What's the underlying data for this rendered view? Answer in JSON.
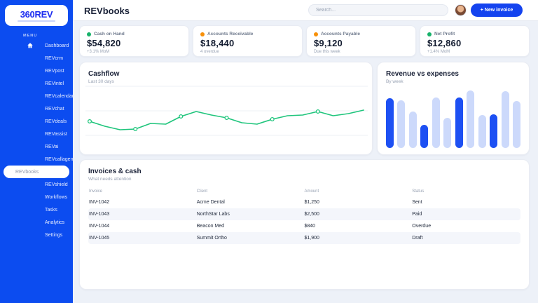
{
  "app": {
    "logo_text": "360REV"
  },
  "sidebar": {
    "menu_label": "MENU",
    "items": [
      {
        "label": "Dashboard"
      },
      {
        "label": "REVcrm"
      },
      {
        "label": "REVpost"
      },
      {
        "label": "REVintel"
      },
      {
        "label": "REVcalendar"
      },
      {
        "label": "REVchat"
      },
      {
        "label": "REVdeals"
      },
      {
        "label": "REVassist"
      },
      {
        "label": "REVai"
      },
      {
        "label": "REVcallagent"
      },
      {
        "label": "REVbooks"
      },
      {
        "label": "REVshield"
      },
      {
        "label": "Workflows"
      },
      {
        "label": "Tasks"
      },
      {
        "label": "Analytics"
      },
      {
        "label": "Settings"
      }
    ],
    "active_item": "REVbooks"
  },
  "header": {
    "title": "REVbooks",
    "search_placeholder": "Search...",
    "new_invoice_label": "+ New invoice"
  },
  "kpis": [
    {
      "label": "Cash on Hand",
      "value": "$54,820",
      "sub": "+3.1% MoM",
      "dot_color": "#17b26a"
    },
    {
      "label": "Accounts Receivable",
      "value": "$18,440",
      "sub": "4 overdue",
      "dot_color": "#f79009"
    },
    {
      "label": "Accounts Payable",
      "value": "$9,120",
      "sub": "Due this week",
      "dot_color": "#f79009"
    },
    {
      "label": "Net Profit",
      "value": "$12,860",
      "sub": "+1.4% MoM",
      "dot_color": "#17b26a"
    }
  ],
  "chart_data": [
    {
      "type": "line",
      "title": "Cashflow",
      "subtitle": "Last 30 days",
      "xlabel": "",
      "ylabel": "",
      "grid": "3 horizontal gridlines, no axis labels",
      "legend": "none",
      "color": "#1fc57c",
      "series": [
        {
          "name": "cash",
          "values": [
            33,
            26,
            21,
            22,
            30,
            29,
            40,
            47,
            42,
            38,
            31,
            29,
            36,
            41,
            42,
            47,
            41,
            44,
            49
          ]
        }
      ],
      "marker_indices": [
        0,
        3,
        6,
        9,
        12,
        15
      ]
    },
    {
      "type": "bar",
      "title": "Revenue vs expenses",
      "subtitle": "By week",
      "xlabel": "",
      "ylabel": "",
      "grid": "off",
      "legend": "none",
      "values": [
        71,
        68,
        52,
        33,
        72,
        43,
        72,
        82,
        47,
        48,
        81,
        67
      ],
      "bar_colors": [
        "revenue",
        "expenses",
        "expenses",
        "revenue",
        "expenses",
        "expenses",
        "revenue",
        "expenses",
        "expenses",
        "revenue",
        "expenses",
        "expenses"
      ],
      "palette": {
        "revenue": "#1d50f3",
        "expenses": "#ccd9fb"
      }
    }
  ],
  "invoices": {
    "title": "Invoices & cash",
    "subtitle": "What needs attention",
    "columns": [
      "Invoice",
      "Client",
      "Amount",
      "Status"
    ],
    "rows": [
      {
        "invoice": "INV-1042",
        "client": "Acme Dental",
        "amount": "$1,250",
        "status": "Sent"
      },
      {
        "invoice": "INV-1043",
        "client": "NorthStar Labs",
        "amount": "$2,500",
        "status": "Paid"
      },
      {
        "invoice": "INV-1044",
        "client": "Beacon Med",
        "amount": "$840",
        "status": "Overdue"
      },
      {
        "invoice": "INV-1045",
        "client": "Summit Ortho",
        "amount": "$1,900",
        "status": "Draft"
      }
    ]
  }
}
